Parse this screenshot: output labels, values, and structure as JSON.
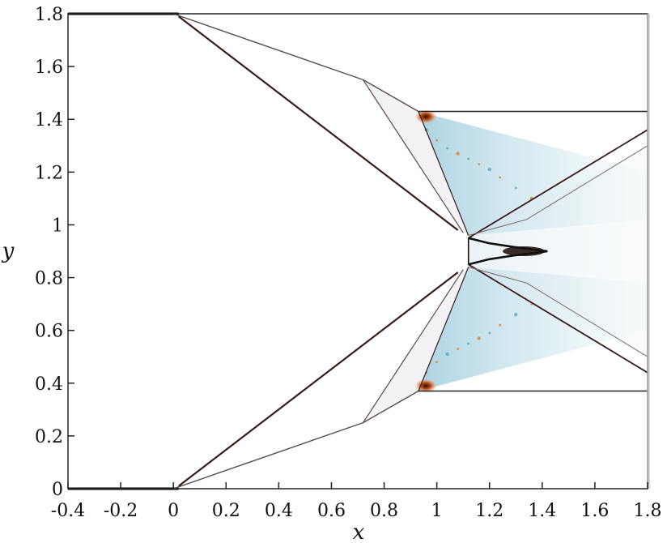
{
  "chart_data": {
    "type": "line",
    "title": "",
    "xlabel": "x",
    "ylabel": "y",
    "xlim": [
      -0.4,
      1.8
    ],
    "ylim": [
      0,
      1.8
    ],
    "x_ticks": [
      "-0.4",
      "-0.2",
      "0",
      "0.2",
      "0.4",
      "0.6",
      "0.8",
      "1",
      "1.2",
      "1.4",
      "1.6",
      "1.8"
    ],
    "y_ticks": [
      "0",
      "0.2",
      "0.4",
      "0.6",
      "0.8",
      "1",
      "1.2",
      "1.4",
      "1.6",
      "1.8"
    ],
    "grid": false,
    "legend": "none",
    "colors": {
      "wall": "#000000",
      "strong_shock": "#3a1a1a",
      "weak_wave": "#5a4a4a",
      "fan": "#aed3e0",
      "hot_spot": "#e07a2a"
    },
    "series": [
      {
        "x": [
          -0.4,
          0.02
        ],
        "y": [
          1.8,
          1.8
        ]
      },
      {
        "x": [
          -0.4,
          0.02
        ],
        "y": [
          0.0,
          0.0
        ]
      },
      {
        "x": [
          0.0,
          0.72,
          0.93
        ],
        "y": [
          1.8,
          1.55,
          1.43
        ]
      },
      {
        "x": [
          0.0,
          0.72,
          0.93
        ],
        "y": [
          0.0,
          0.25,
          0.37
        ]
      },
      {
        "x": [
          0.93,
          1.8
        ],
        "y": [
          1.43,
          1.43
        ]
      },
      {
        "x": [
          0.93,
          1.8
        ],
        "y": [
          0.37,
          0.37
        ]
      },
      {
        "x": [
          0.02,
          1.08
        ],
        "y": [
          1.79,
          0.98
        ]
      },
      {
        "x": [
          0.02,
          1.08
        ],
        "y": [
          0.01,
          0.82
        ]
      },
      {
        "x": [
          0.72,
          1.1
        ],
        "y": [
          1.55,
          0.97
        ]
      },
      {
        "x": [
          0.72,
          1.1
        ],
        "y": [
          0.25,
          0.83
        ]
      },
      {
        "x": [
          0.93,
          1.12
        ],
        "y": [
          1.43,
          0.96
        ]
      },
      {
        "x": [
          0.93,
          1.12
        ],
        "y": [
          0.37,
          0.84
        ]
      },
      {
        "x": [
          1.12,
          1.12
        ],
        "y": [
          0.95,
          0.85
        ]
      },
      {
        "x": [
          1.12,
          1.8
        ],
        "y": [
          0.95,
          1.36
        ]
      },
      {
        "x": [
          1.12,
          1.8
        ],
        "y": [
          0.85,
          0.44
        ]
      },
      {
        "x": [
          1.12,
          1.34,
          1.8
        ],
        "y": [
          0.96,
          1.02,
          1.3
        ]
      },
      {
        "x": [
          1.12,
          1.34,
          1.8
        ],
        "y": [
          0.84,
          0.78,
          0.5
        ]
      },
      {
        "x": [
          1.12,
          1.2,
          1.3,
          1.42
        ],
        "y": [
          0.95,
          0.93,
          0.915,
          0.9
        ]
      },
      {
        "x": [
          1.12,
          1.2,
          1.3,
          1.42
        ],
        "y": [
          0.85,
          0.87,
          0.885,
          0.9
        ]
      }
    ]
  }
}
